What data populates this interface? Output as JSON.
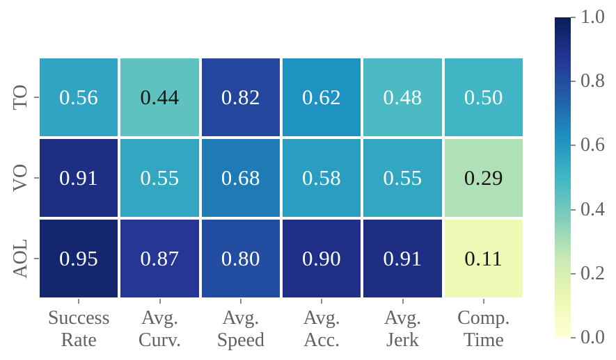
{
  "figure": {
    "background": "#ffffff",
    "axis_text_color": "#616161",
    "tick_color": "#8a8a8a"
  },
  "chart_data": {
    "type": "heatmap",
    "title": "",
    "rows": [
      "TO",
      "VO",
      "AOL"
    ],
    "columns": [
      "Success\nRate",
      "Avg.\nCurv.",
      "Avg.\nSpeed",
      "Avg.\nAcc.",
      "Avg.\nJerk",
      "Comp.\nTime"
    ],
    "values": [
      [
        0.56,
        0.44,
        0.82,
        0.62,
        0.48,
        0.5
      ],
      [
        0.91,
        0.55,
        0.68,
        0.58,
        0.55,
        0.29
      ],
      [
        0.95,
        0.87,
        0.8,
        0.9,
        0.91,
        0.11
      ]
    ],
    "value_decimals": 2,
    "annot_color_light": "#ffffff",
    "annot_color_dark": "#151515",
    "cell_gap_color": "#ffffff",
    "colormap": {
      "name": "YlGnBu",
      "stops": [
        [
          0.0,
          "#ffffd9"
        ],
        [
          0.125,
          "#edf8b1"
        ],
        [
          0.25,
          "#c7e9b4"
        ],
        [
          0.375,
          "#7fcdbb"
        ],
        [
          0.5,
          "#41b6c4"
        ],
        [
          0.625,
          "#1d91c0"
        ],
        [
          0.75,
          "#225ea8"
        ],
        [
          0.875,
          "#253494"
        ],
        [
          1.0,
          "#081d58"
        ]
      ]
    },
    "colorbar": {
      "position": "right",
      "min": 0.0,
      "max": 1.0,
      "tick_labels": [
        "1.0",
        "0.8",
        "0.6",
        "0.4",
        "0.2",
        "0.0"
      ]
    }
  }
}
